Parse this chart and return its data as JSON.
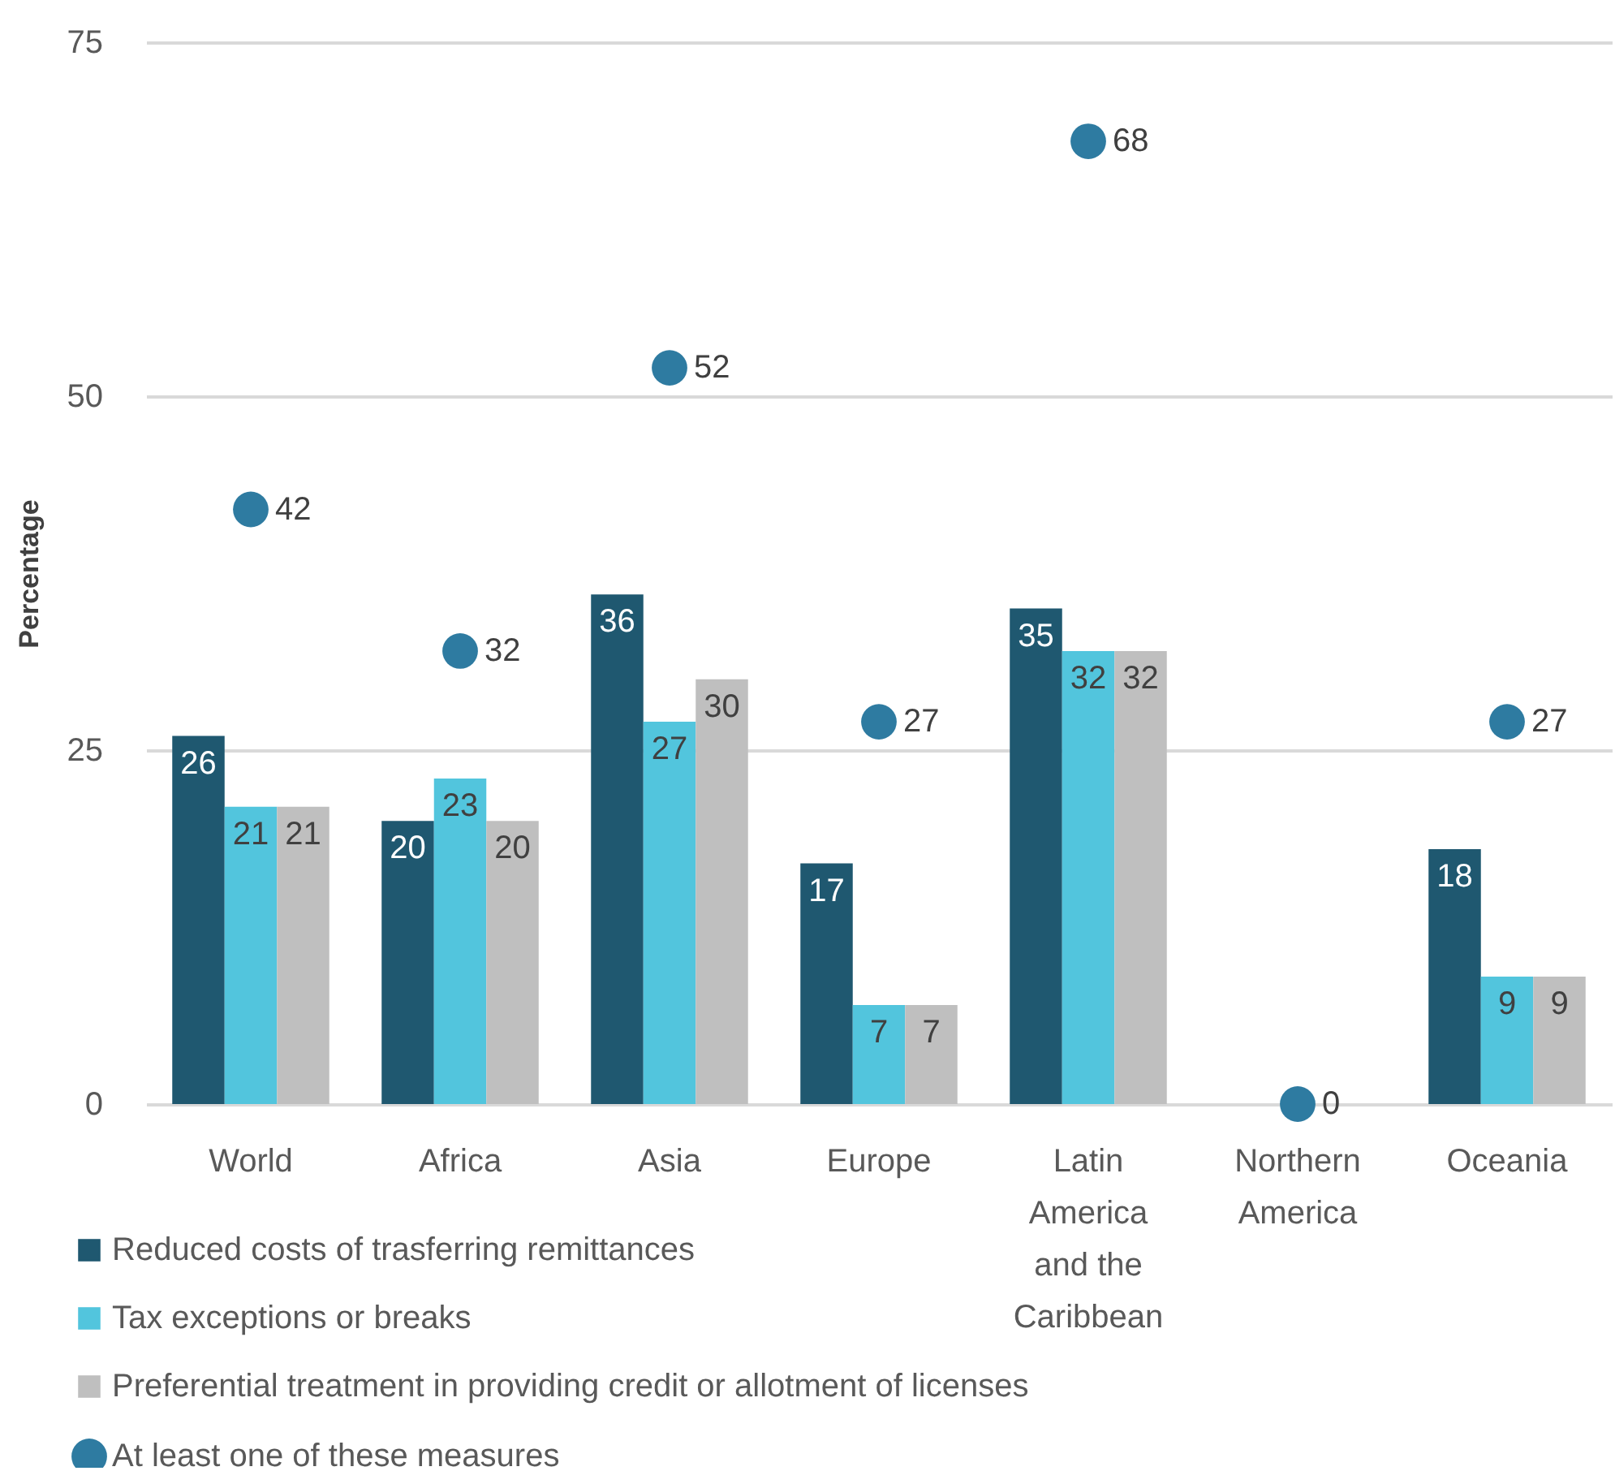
{
  "chart_data": {
    "type": "bar",
    "ylabel": "Percentage",
    "categories": [
      "World",
      "Africa",
      "Asia",
      "Europe",
      "Latin America and the Caribbean",
      "Northern America",
      "Oceania"
    ],
    "series": [
      {
        "name": "Reduced costs of trasferring remittances",
        "color": "#1f5870",
        "values": [
          26,
          20,
          36,
          17,
          35,
          null,
          18
        ]
      },
      {
        "name": "Tax exceptions or breaks",
        "color": "#52c5dd",
        "values": [
          21,
          23,
          27,
          7,
          32,
          null,
          9
        ]
      },
      {
        "name": "Preferential treatment in providing credit or allotment of licenses",
        "color": "#bfbfbf",
        "values": [
          21,
          20,
          30,
          7,
          32,
          null,
          9
        ]
      },
      {
        "name": "At least one of these measures",
        "type": "scatter",
        "color": "#2e7ba1",
        "values": [
          42,
          32,
          52,
          27,
          68,
          0,
          27
        ]
      }
    ],
    "ylim": [
      0,
      75
    ],
    "yticks": [
      0,
      25,
      50,
      75
    ],
    "grid": "y",
    "legend": "bottom",
    "marker": "circle",
    "data_labels": true
  }
}
